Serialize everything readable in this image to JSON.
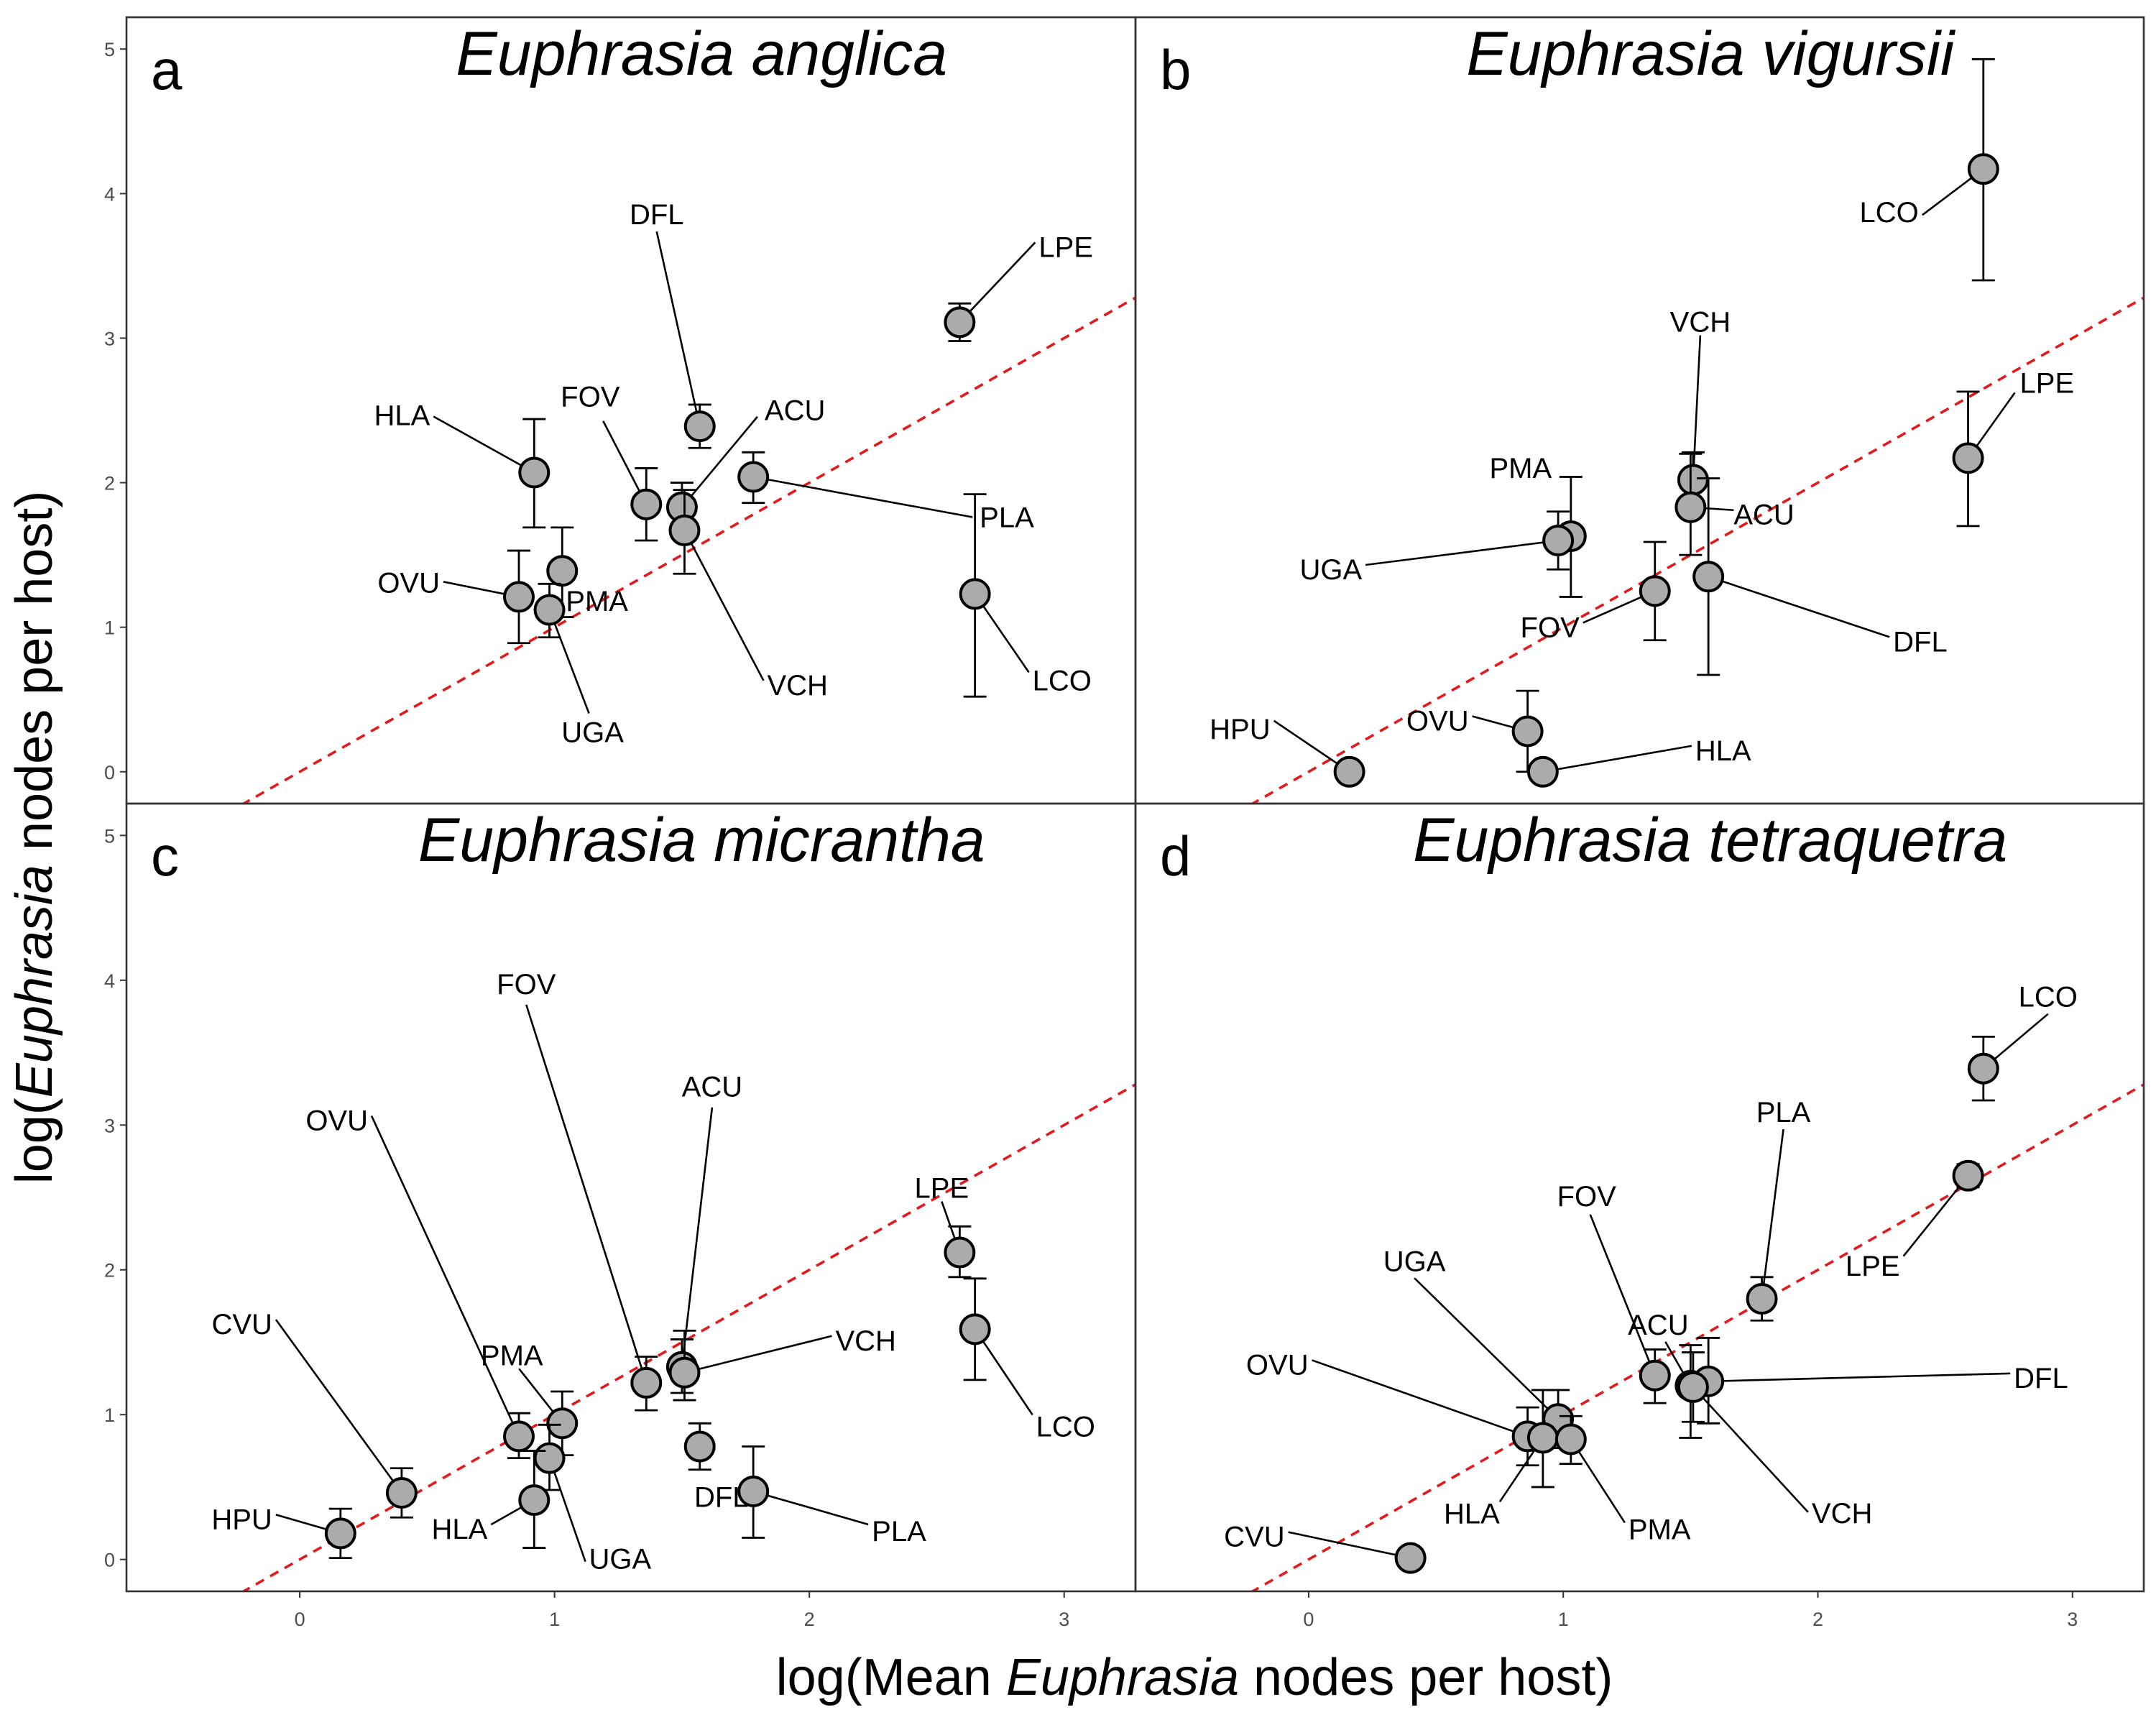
{
  "axes": {
    "xlabel_prefix": "log(Mean ",
    "xlabel_italic": "Euphrasia",
    "xlabel_suffix": " nodes per host)",
    "ylabel_prefix": "log(",
    "ylabel_italic": "Euphrasia",
    "ylabel_suffix": " nodes per host)"
  },
  "chart_data": [
    {
      "type": "scatter",
      "panel": "a",
      "title": "Euphrasia anglica",
      "x_ticks": [
        "0",
        "1",
        "2",
        "3"
      ],
      "y_ticks": [
        "0",
        "1",
        "2",
        "3",
        "4",
        "5"
      ],
      "xlim": [
        -0.68,
        3.28
      ],
      "ylim": [
        -0.22,
        5.22
      ],
      "reference_line": {
        "slope": 1,
        "intercept": 0,
        "style": "dashed",
        "color": "#e31a1c"
      },
      "points": [
        {
          "label": "DFL",
          "x": 1.57,
          "y": 2.39,
          "err_low": 2.24,
          "err_high": 2.54
        },
        {
          "label": "LPE",
          "x": 2.59,
          "y": 3.11,
          "err_low": 2.98,
          "err_high": 3.24
        },
        {
          "label": "ACU",
          "x": 1.5,
          "y": 1.83,
          "err_low": 1.66,
          "err_high": 2.0
        },
        {
          "label": "FOV",
          "x": 1.36,
          "y": 1.85,
          "err_low": 1.6,
          "err_high": 2.1
        },
        {
          "label": "HLA",
          "x": 0.92,
          "y": 2.07,
          "err_low": 1.69,
          "err_high": 2.44
        },
        {
          "label": "PLA",
          "x": 1.78,
          "y": 2.04,
          "err_low": 1.86,
          "err_high": 2.21
        },
        {
          "label": "PMA",
          "x": 1.03,
          "y": 1.39,
          "err_low": 1.07,
          "err_high": 1.69
        },
        {
          "label": "OVU",
          "x": 0.86,
          "y": 1.21,
          "err_low": 0.89,
          "err_high": 1.53
        },
        {
          "label": "UGA",
          "x": 0.98,
          "y": 1.12,
          "err_low": 0.93,
          "err_high": 1.3
        },
        {
          "label": "VCH",
          "x": 1.51,
          "y": 1.67,
          "err_low": 1.37,
          "err_high": 1.95
        },
        {
          "label": "LCO",
          "x": 2.65,
          "y": 1.23,
          "err_low": 0.52,
          "err_high": 1.92
        }
      ]
    },
    {
      "type": "scatter",
      "panel": "b",
      "title": "Euphrasia vigursii",
      "x_ticks": [
        "0",
        "1",
        "2",
        "3"
      ],
      "y_ticks": [
        "0",
        "1",
        "2",
        "3",
        "4",
        "5"
      ],
      "xlim": [
        -0.68,
        3.28
      ],
      "ylim": [
        -0.22,
        5.22
      ],
      "reference_line": {
        "slope": 1,
        "intercept": 0,
        "style": "dashed",
        "color": "#e31a1c"
      },
      "points": [
        {
          "label": "LCO",
          "x": 2.65,
          "y": 4.17,
          "err_low": 3.4,
          "err_high": 4.93
        },
        {
          "label": "VCH",
          "x": 1.51,
          "y": 2.02,
          "err_low": 1.85,
          "err_high": 2.21
        },
        {
          "label": "LPE",
          "x": 2.59,
          "y": 2.17,
          "err_low": 1.7,
          "err_high": 2.63
        },
        {
          "label": "ACU",
          "x": 1.5,
          "y": 1.83,
          "err_low": 1.5,
          "err_high": 2.2
        },
        {
          "label": "PMA",
          "x": 1.03,
          "y": 1.63,
          "err_low": 1.21,
          "err_high": 2.04
        },
        {
          "label": "UGA",
          "x": 0.98,
          "y": 1.6,
          "err_low": 1.4,
          "err_high": 1.8
        },
        {
          "label": "FOV",
          "x": 1.36,
          "y": 1.25,
          "err_low": 0.91,
          "err_high": 1.59
        },
        {
          "label": "DFL",
          "x": 1.57,
          "y": 1.35,
          "err_low": 0.67,
          "err_high": 2.03
        },
        {
          "label": "HPU",
          "x": 0.16,
          "y": 0.0,
          "err_low": 0.0,
          "err_high": 0.0
        },
        {
          "label": "OVU",
          "x": 0.86,
          "y": 0.28,
          "err_low": 0.0,
          "err_high": 0.56
        },
        {
          "label": "HLA",
          "x": 0.92,
          "y": 0.0,
          "err_low": 0.0,
          "err_high": 0.0
        }
      ]
    },
    {
      "type": "scatter",
      "panel": "c",
      "title": "Euphrasia micrantha",
      "x_ticks": [
        "0",
        "1",
        "2",
        "3"
      ],
      "y_ticks": [
        "0",
        "1",
        "2",
        "3",
        "4",
        "5"
      ],
      "xlim": [
        -0.68,
        3.28
      ],
      "ylim": [
        -0.22,
        5.22
      ],
      "reference_line": {
        "slope": 1,
        "intercept": 0,
        "style": "dashed",
        "color": "#e31a1c"
      },
      "points": [
        {
          "label": "FOV",
          "x": 1.36,
          "y": 1.22,
          "err_low": 1.03,
          "err_high": 1.4
        },
        {
          "label": "OVU",
          "x": 0.86,
          "y": 0.85,
          "err_low": 0.7,
          "err_high": 1.01
        },
        {
          "label": "ACU",
          "x": 1.5,
          "y": 1.33,
          "err_low": 1.15,
          "err_high": 1.52
        },
        {
          "label": "LPE",
          "x": 2.59,
          "y": 2.12,
          "err_low": 1.95,
          "err_high": 2.3
        },
        {
          "label": "VCH",
          "x": 1.51,
          "y": 1.29,
          "err_low": 1.1,
          "err_high": 1.58
        },
        {
          "label": "CVU",
          "x": 0.4,
          "y": 0.46,
          "err_low": 0.29,
          "err_high": 0.63
        },
        {
          "label": "PMA",
          "x": 1.03,
          "y": 0.94,
          "err_low": 0.72,
          "err_high": 1.16
        },
        {
          "label": "LCO",
          "x": 2.65,
          "y": 1.59,
          "err_low": 1.24,
          "err_high": 1.94
        },
        {
          "label": "UGA",
          "x": 0.98,
          "y": 0.7,
          "err_low": 0.48,
          "err_high": 0.93
        },
        {
          "label": "DFL",
          "x": 1.57,
          "y": 0.78,
          "err_low": 0.62,
          "err_high": 0.94
        },
        {
          "label": "HPU",
          "x": 0.16,
          "y": 0.18,
          "err_low": 0.01,
          "err_high": 0.35
        },
        {
          "label": "HLA",
          "x": 0.92,
          "y": 0.41,
          "err_low": 0.08,
          "err_high": 0.75
        },
        {
          "label": "PLA",
          "x": 1.78,
          "y": 0.47,
          "err_low": 0.15,
          "err_high": 0.78
        }
      ]
    },
    {
      "type": "scatter",
      "panel": "d",
      "title": "Euphrasia tetraquetra",
      "x_ticks": [
        "0",
        "1",
        "2",
        "3"
      ],
      "y_ticks": [
        "0",
        "1",
        "2",
        "3",
        "4",
        "5"
      ],
      "xlim": [
        -0.68,
        3.28
      ],
      "ylim": [
        -0.22,
        5.22
      ],
      "reference_line": {
        "slope": 1,
        "intercept": 0,
        "style": "dashed",
        "color": "#e31a1c"
      },
      "points": [
        {
          "label": "LCO",
          "x": 2.65,
          "y": 3.39,
          "err_low": 3.17,
          "err_high": 3.61
        },
        {
          "label": "PLA",
          "x": 1.78,
          "y": 1.8,
          "err_low": 1.65,
          "err_high": 1.95
        },
        {
          "label": "FOV",
          "x": 1.36,
          "y": 1.27,
          "err_low": 1.08,
          "err_high": 1.45
        },
        {
          "label": "LPE",
          "x": 2.59,
          "y": 2.65,
          "err_low": 2.57,
          "err_high": 2.73
        },
        {
          "label": "UGA",
          "x": 0.98,
          "y": 0.97,
          "err_low": 0.77,
          "err_high": 1.17
        },
        {
          "label": "ACU",
          "x": 1.5,
          "y": 1.2,
          "err_low": 0.84,
          "err_high": 1.48
        },
        {
          "label": "OVU",
          "x": 0.86,
          "y": 0.85,
          "err_low": 0.65,
          "err_high": 1.05
        },
        {
          "label": "DFL",
          "x": 1.57,
          "y": 1.23,
          "err_low": 0.94,
          "err_high": 1.53
        },
        {
          "label": "VCH",
          "x": 1.51,
          "y": 1.19,
          "err_low": 0.95,
          "err_high": 1.43
        },
        {
          "label": "HLA",
          "x": 0.92,
          "y": 0.84,
          "err_low": 0.5,
          "err_high": 1.17
        },
        {
          "label": "PMA",
          "x": 1.03,
          "y": 0.83,
          "err_low": 0.66,
          "err_high": 0.99
        },
        {
          "label": "CVU",
          "x": 0.4,
          "y": 0.01,
          "err_low": 0.01,
          "err_high": 0.01
        }
      ]
    }
  ]
}
